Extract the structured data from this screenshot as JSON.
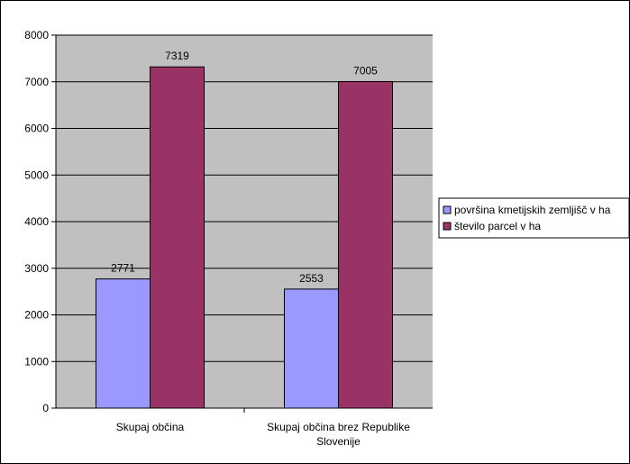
{
  "chart_data": {
    "type": "bar",
    "categories": [
      "Skupaj občina",
      "Skupaj občina brez Republike Slovenije"
    ],
    "series": [
      {
        "name": "površina kmetijskih zemljišč v ha",
        "values": [
          2771,
          2553
        ],
        "color": "#9999ff"
      },
      {
        "name": "število parcel v ha",
        "values": [
          7319,
          7005
        ],
        "color": "#993366"
      }
    ],
    "ylim": [
      0,
      8000
    ],
    "yticks": [
      0,
      1000,
      2000,
      3000,
      4000,
      5000,
      6000,
      7000,
      8000
    ],
    "grid": true,
    "plot_background": "#c0c0c0",
    "legend_position": "right",
    "title": "",
    "xlabel": "",
    "ylabel": ""
  }
}
